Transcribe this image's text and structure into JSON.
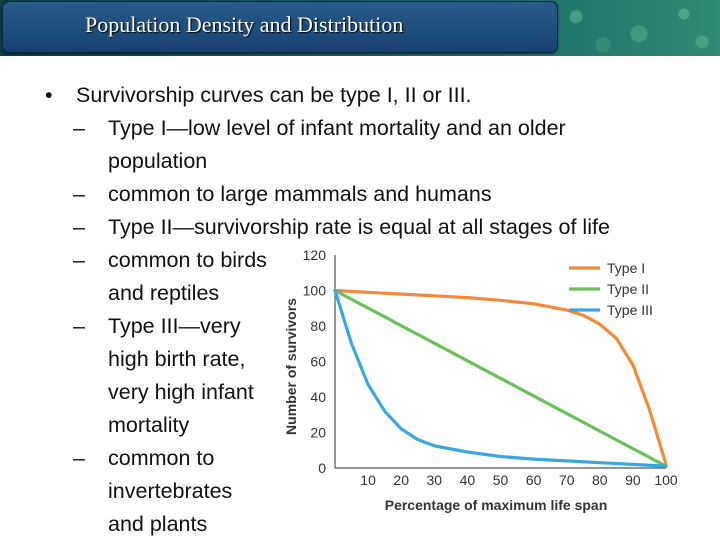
{
  "slide": {
    "title": "Population Density and Distribution",
    "bullets": [
      {
        "level": 1,
        "mark": "•",
        "lines": [
          "Survivorship curves can be type I, II or III."
        ]
      },
      {
        "level": 2,
        "mark": "–",
        "lines": [
          "Type I—low level of infant mortality and an older",
          "population"
        ]
      },
      {
        "level": 2,
        "mark": "–",
        "lines": [
          "common to large mammals and humans"
        ]
      },
      {
        "level": 2,
        "mark": "–",
        "lines": [
          "Type II—survivorship rate is equal at all stages of life"
        ]
      },
      {
        "level": 2,
        "mark": "–",
        "lines": [
          "common to birds",
          "and reptiles"
        ]
      },
      {
        "level": 2,
        "mark": "–",
        "lines": [
          "Type III—very",
          "high birth rate,",
          "very high infant",
          "mortality"
        ]
      },
      {
        "level": 2,
        "mark": "–",
        "lines": [
          "common to",
          "invertebrates",
          "and plants"
        ]
      }
    ]
  },
  "colors": {
    "type1": "#f28a3a",
    "type2": "#6cbf5a",
    "type3": "#3aa6de"
  },
  "chart_data": {
    "type": "line",
    "title": "",
    "xlabel": "Percentage of maximum life span",
    "ylabel": "Number of survivors",
    "xlim": [
      0,
      100
    ],
    "ylim": [
      0,
      120
    ],
    "x_ticks": [
      10,
      20,
      30,
      40,
      50,
      60,
      70,
      80,
      90,
      100
    ],
    "y_ticks": [
      0,
      20,
      40,
      60,
      80,
      100,
      120
    ],
    "grid": false,
    "legend": "top-right",
    "series": [
      {
        "name": "Type I",
        "x": [
          0,
          10,
          20,
          30,
          40,
          50,
          60,
          70,
          75,
          80,
          85,
          90,
          95,
          100
        ],
        "y": [
          100,
          99,
          98,
          97,
          96,
          94.5,
          92.5,
          89,
          86,
          81,
          73,
          58,
          33,
          2
        ]
      },
      {
        "name": "Type II",
        "x": [
          0,
          100
        ],
        "y": [
          100,
          1
        ]
      },
      {
        "name": "Type III",
        "x": [
          0,
          5,
          10,
          15,
          20,
          25,
          30,
          40,
          50,
          60,
          70,
          80,
          90,
          100
        ],
        "y": [
          100,
          70,
          47,
          32,
          22,
          16,
          12.5,
          9,
          6.5,
          5,
          4,
          3,
          2,
          1
        ]
      }
    ]
  }
}
